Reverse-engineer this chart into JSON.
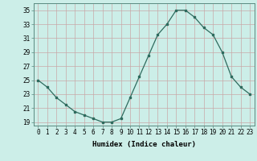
{
  "x": [
    0,
    1,
    2,
    3,
    4,
    5,
    6,
    7,
    8,
    9,
    10,
    11,
    12,
    13,
    14,
    15,
    16,
    17,
    18,
    19,
    20,
    21,
    22,
    23
  ],
  "y": [
    25,
    24,
    22.5,
    21.5,
    20.5,
    20,
    19.5,
    19,
    19,
    19.5,
    22.5,
    25.5,
    28.5,
    31.5,
    33,
    35,
    35,
    34,
    32.5,
    31.5,
    29,
    25.5,
    24,
    23
  ],
  "line_color": "#2e6b5e",
  "bg_color": "#cceee8",
  "grid_color_h": "#c8a8a8",
  "grid_color_v": "#c8a8a8",
  "xlabel": "Humidex (Indice chaleur)",
  "ylim": [
    18.5,
    36
  ],
  "xlim": [
    -0.5,
    23.5
  ],
  "yticks": [
    19,
    21,
    23,
    25,
    27,
    29,
    31,
    33,
    35
  ],
  "xticks": [
    0,
    1,
    2,
    3,
    4,
    5,
    6,
    7,
    8,
    9,
    10,
    11,
    12,
    13,
    14,
    15,
    16,
    17,
    18,
    19,
    20,
    21,
    22,
    23
  ],
  "tick_fontsize": 5.5,
  "xlabel_fontsize": 6.5,
  "marker_size": 2.0,
  "line_width": 0.9
}
